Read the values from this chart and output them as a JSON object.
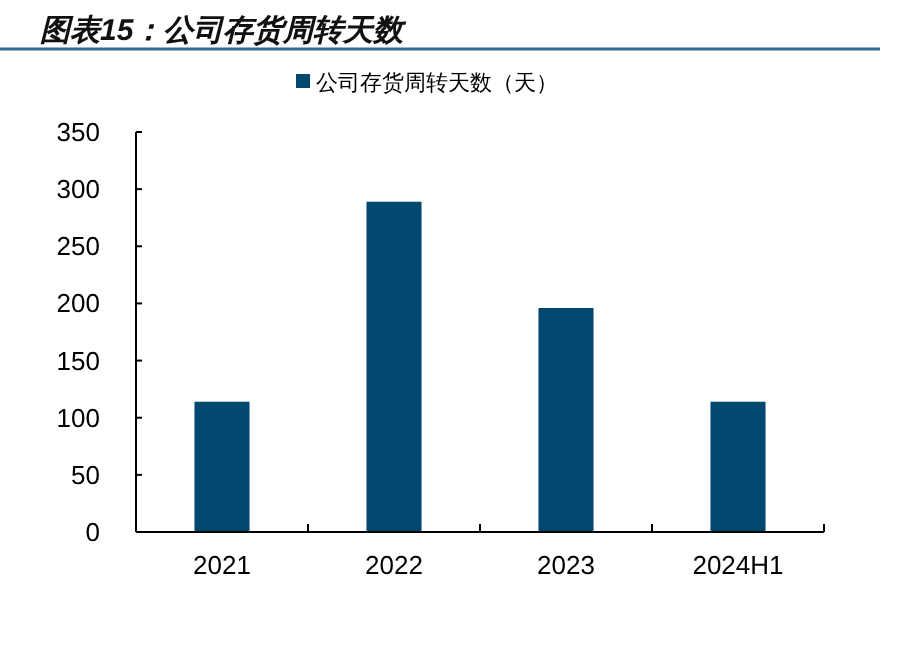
{
  "chart_data": {
    "type": "bar",
    "title": "图表15：公司存货周转天数",
    "categories": [
      "2021",
      "2022",
      "2023",
      "2024H1"
    ],
    "series": [
      {
        "name": "公司存货周转天数（天）",
        "color": "#00486e",
        "values": [
          114,
          289,
          196,
          114
        ]
      }
    ],
    "ylim": [
      0,
      350
    ],
    "yticks": [
      0,
      50,
      100,
      150,
      200,
      250,
      300,
      350
    ],
    "grid": false,
    "legend": "top"
  }
}
